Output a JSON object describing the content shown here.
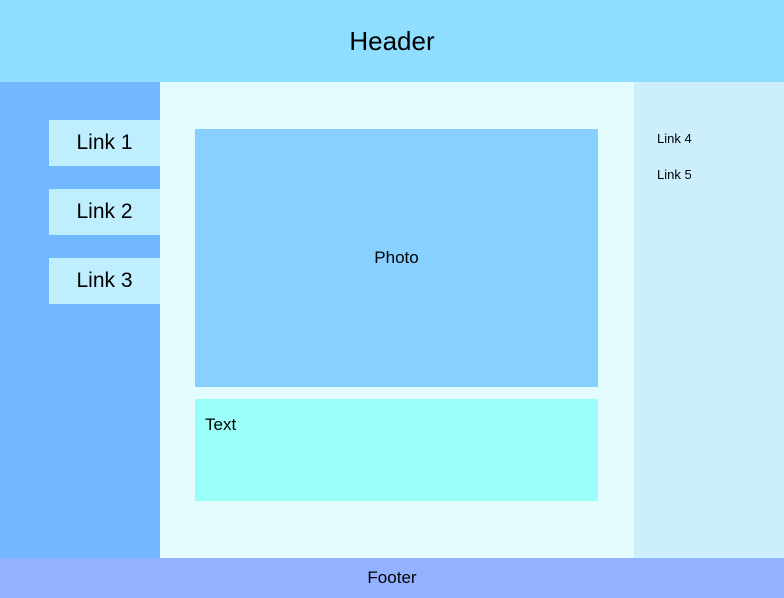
{
  "header": {
    "title": "Header"
  },
  "left_sidebar": {
    "links": [
      {
        "label": "Link 1"
      },
      {
        "label": "Link 2"
      },
      {
        "label": "Link 3"
      }
    ]
  },
  "main": {
    "photo_label": "Photo",
    "text_label": "Text"
  },
  "right_sidebar": {
    "links": [
      {
        "label": "Link 4"
      },
      {
        "label": "Link 5"
      }
    ]
  },
  "footer": {
    "label": "Footer"
  },
  "colors": {
    "header": "#8fdeff",
    "left_sidebar": "#72b8ff",
    "left_link": "#bfeeff",
    "main": "#e3fdff",
    "photo": "#87d0ff",
    "text": "#9bfff9",
    "right_sidebar": "#cdeefc",
    "footer": "#92b2ff"
  }
}
